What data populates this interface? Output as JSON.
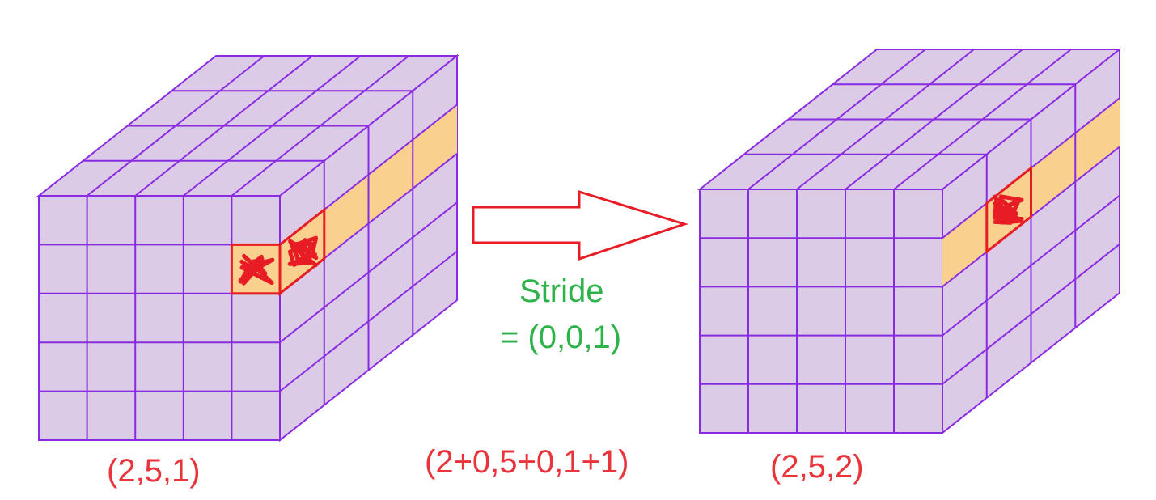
{
  "colors": {
    "cube_face": "#dccbe6",
    "grid_line": "#8a2be2",
    "highlight_band": "#fad08e",
    "selected_outline": "#e81c24",
    "scribble": "#e81c24",
    "arrow": "#e81c24",
    "stride_text": "#2eb34a",
    "coord_text": "#e8343a"
  },
  "left_cube": {
    "grid": {
      "front_cols": 5,
      "front_rows": 5,
      "depth": 4
    },
    "selected_cell": {
      "row": 2,
      "col": 5,
      "depth": 1
    },
    "highlight": "row 2 band along depth",
    "coordinate_label": "(2,5,1)"
  },
  "right_cube": {
    "grid": {
      "front_cols": 5,
      "front_rows": 5,
      "depth": 4
    },
    "selected_cell": {
      "row": 2,
      "col": 5,
      "depth": 2
    },
    "highlight": "row 2 band along depth",
    "coordinate_label": "(2,5,2)"
  },
  "arrow": {
    "icon": "hollow-right-arrow-icon"
  },
  "stride": {
    "line1": "Stride",
    "line2": "= (0,0,1)"
  },
  "formula": "(2+0,5+0,1+1)"
}
